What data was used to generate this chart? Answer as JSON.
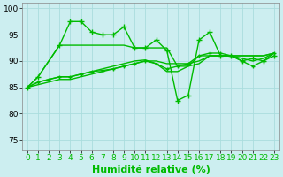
{
  "title": "",
  "xlabel": "Humidité relative (%)",
  "ylabel": "",
  "xlim": [
    -0.5,
    23.5
  ],
  "ylim": [
    73,
    101
  ],
  "yticks": [
    75,
    80,
    85,
    90,
    95,
    100
  ],
  "xtick_labels": [
    "0",
    "1",
    "2",
    "3",
    "4",
    "5",
    "6",
    "7",
    "8",
    "9",
    "10",
    "11",
    "12",
    "13",
    "14",
    "15",
    "16",
    "17",
    "18",
    "19",
    "20",
    "21",
    "22",
    "23"
  ],
  "bg_color": "#cceef0",
  "grid_color": "#aadddd",
  "line_color": "#00bb00",
  "series": [
    {
      "x": [
        0,
        1,
        3,
        4,
        5,
        6,
        7,
        8,
        9,
        10,
        11,
        12,
        13,
        14,
        15,
        16,
        17,
        18,
        19,
        20,
        21,
        22,
        23
      ],
      "y": [
        85,
        87,
        93,
        97.5,
        97.5,
        95.5,
        95,
        95,
        96.5,
        92.5,
        92.5,
        94,
        92,
        82.5,
        83.5,
        94,
        95.5,
        91,
        91,
        90,
        90.5,
        90,
        91
      ],
      "marker": "+",
      "markersize": 4,
      "linewidth": 1.0
    },
    {
      "x": [
        0,
        1,
        3,
        4,
        5,
        6,
        7,
        8,
        9,
        10,
        11,
        12,
        13,
        14,
        15,
        16,
        17,
        18,
        19,
        20,
        21,
        22,
        23
      ],
      "y": [
        85,
        87,
        93,
        93,
        93,
        93,
        93,
        93,
        93,
        92.5,
        92.5,
        92.5,
        92.5,
        89,
        89,
        91,
        91,
        91,
        91,
        91,
        91,
        91,
        91.5
      ],
      "marker": null,
      "markersize": 0,
      "linewidth": 1.0
    },
    {
      "x": [
        0,
        1,
        2,
        3,
        4,
        5,
        6,
        7,
        8,
        9,
        10,
        11,
        12,
        13,
        14,
        15,
        16,
        17,
        18,
        19,
        20,
        21,
        22,
        23
      ],
      "y": [
        85,
        85.5,
        86,
        86.5,
        86.5,
        87,
        87.5,
        88,
        88.5,
        89,
        89.5,
        90,
        90,
        89.5,
        89.5,
        89.5,
        90,
        91,
        91,
        91,
        91,
        91,
        91,
        91.5
      ],
      "marker": null,
      "markersize": 0,
      "linewidth": 1.0
    },
    {
      "x": [
        0,
        1,
        2,
        3,
        4,
        5,
        6,
        7,
        8,
        9,
        10,
        11,
        12,
        13,
        14,
        15,
        16,
        17,
        18,
        19,
        20,
        21,
        22,
        23
      ],
      "y": [
        85,
        86,
        86.5,
        87,
        87,
        87.5,
        88,
        88.5,
        89,
        89.5,
        90,
        90.2,
        89.5,
        88,
        88,
        89,
        89.5,
        91,
        91,
        91,
        90.5,
        90,
        90.5,
        91.5
      ],
      "marker": null,
      "markersize": 0,
      "linewidth": 1.0
    },
    {
      "x": [
        0,
        1,
        2,
        3,
        4,
        5,
        6,
        7,
        8,
        9,
        10,
        11,
        12,
        13,
        14,
        15,
        16,
        17,
        18,
        19,
        20,
        21,
        22,
        23
      ],
      "y": [
        85,
        86,
        86.5,
        87,
        87,
        87.5,
        88,
        88.2,
        88.5,
        89,
        89.5,
        90,
        89.5,
        88.5,
        89,
        89.5,
        91,
        91.5,
        91.5,
        91,
        90,
        89,
        90,
        91.5
      ],
      "marker": "+",
      "markersize": 3,
      "linewidth": 1.0
    }
  ],
  "xlabel_fontsize": 8,
  "tick_fontsize": 6.5
}
